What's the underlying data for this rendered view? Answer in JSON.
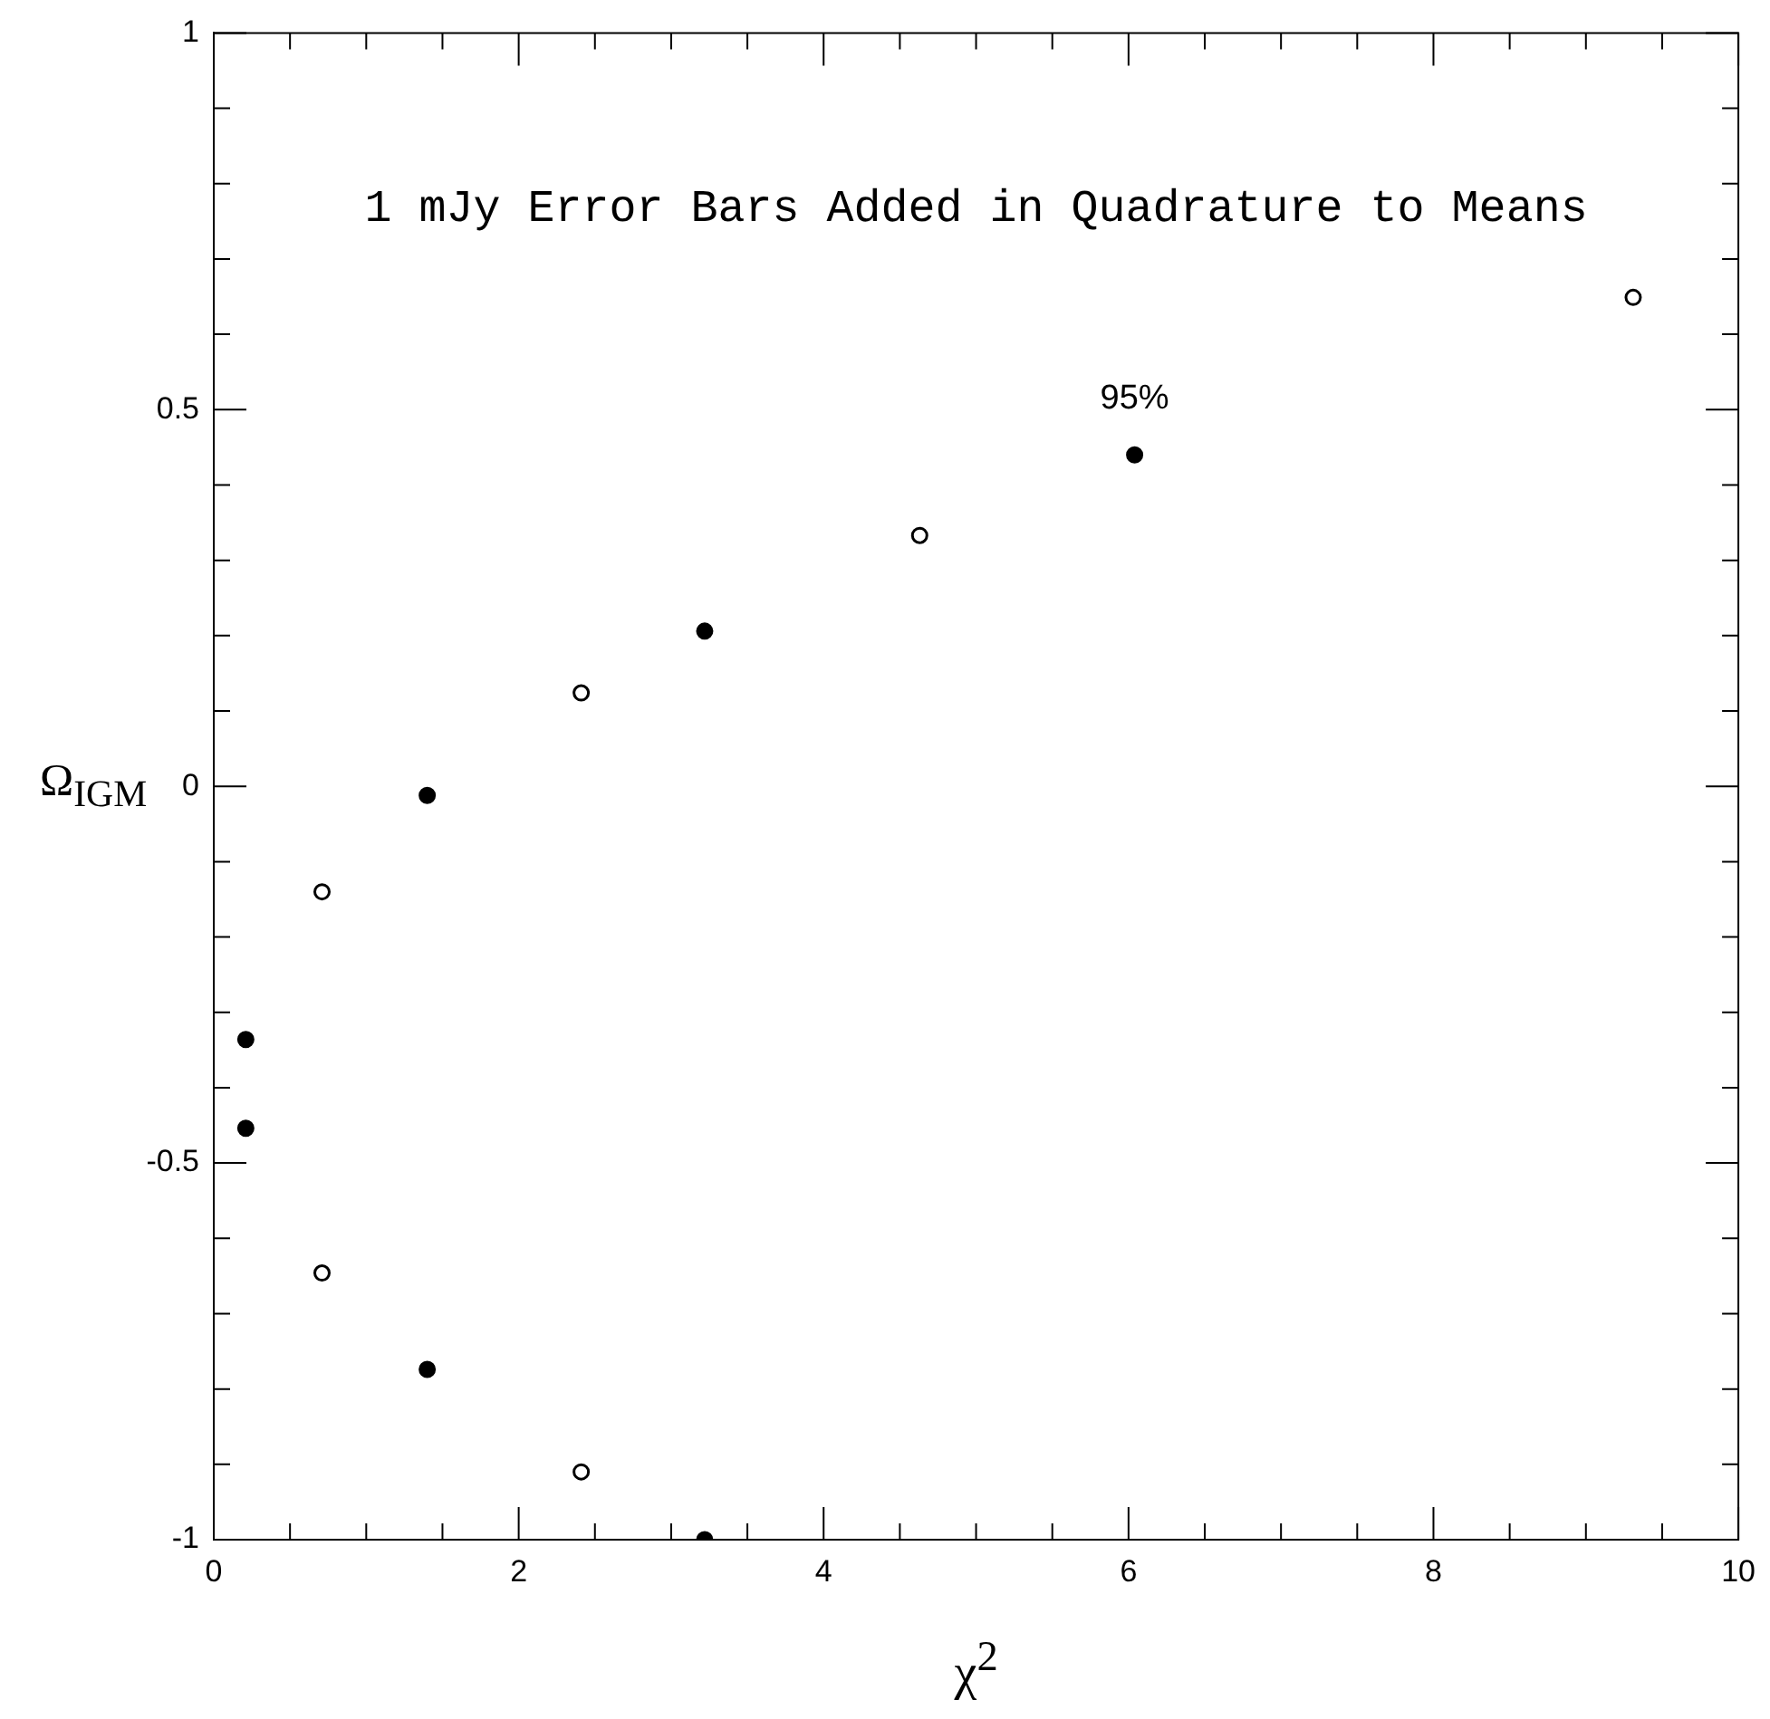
{
  "chart_data": {
    "type": "scatter",
    "title": "1 mJy Error Bars Added in Quadrature to Means",
    "xlabel": "χ$^{2}$",
    "ylabel": "Ω$_{IGM}$",
    "series": [
      {
        "color": "#000000",
        "x": [
          0.21,
          0.21,
          1.4,
          1.4,
          3.22,
          3.22,
          6.04
        ],
        "values": [
          -0.336,
          -0.454,
          -0.012,
          -0.774,
          0.206,
          -1.0,
          0.44
        ]
      },
      {
        "color": "#ffffff",
        "x": [
          0.71,
          0.71,
          2.41,
          2.41,
          4.63,
          9.31
        ],
        "values": [
          -0.14,
          -0.646,
          0.124,
          -0.91,
          0.333,
          0.649
        ]
      }
    ],
    "annotations": [
      {
        "text": "95%",
        "x": 6.04,
        "y": 0.44
      }
    ],
    "xlim": [
      0,
      10
    ],
    "ylim": [
      -1,
      1
    ],
    "xticks": [
      0,
      {
        "value": 0.5,
        "label": null
      },
      {
        "value": 1,
        "label": null
      },
      {
        "value": 1.5,
        "label": null
      },
      2,
      {
        "value": 2.5,
        "label": null
      },
      {
        "value": 3,
        "label": null
      },
      {
        "value": 3.5,
        "label": null
      },
      4,
      {
        "value": 4.5,
        "label": null
      },
      {
        "value": 5,
        "label": null
      },
      {
        "value": 5.5,
        "label": null
      },
      6,
      {
        "value": 6.5,
        "label": null
      },
      {
        "value": 7,
        "label": null
      },
      {
        "value": 7.5,
        "label": null
      },
      8,
      {
        "value": 8.5,
        "label": null
      },
      {
        "value": 9,
        "label": null
      },
      {
        "value": 9.5,
        "label": null
      },
      10
    ],
    "yticks": [
      -1,
      {
        "value": -0.9,
        "label": null
      },
      {
        "value": -0.8,
        "label": null
      },
      {
        "value": -0.7,
        "label": null
      },
      {
        "value": -0.6,
        "label": null
      },
      -0.5,
      {
        "value": -0.4,
        "label": null
      },
      {
        "value": -0.3,
        "label": null
      },
      {
        "value": -0.2,
        "label": null
      },
      {
        "value": -0.1,
        "label": null
      },
      0,
      {
        "value": 0.1,
        "label": null
      },
      {
        "value": 0.2,
        "label": null
      },
      {
        "value": 0.3,
        "label": null
      },
      {
        "value": 0.4,
        "label": null
      },
      0.5,
      {
        "value": 0.6,
        "label": null
      },
      {
        "value": 0.7,
        "label": null
      },
      {
        "value": 0.8,
        "label": null
      },
      {
        "value": 0.9,
        "label": null
      },
      1
    ],
    "grid": false,
    "legend": false,
    "marker": "circle"
  }
}
